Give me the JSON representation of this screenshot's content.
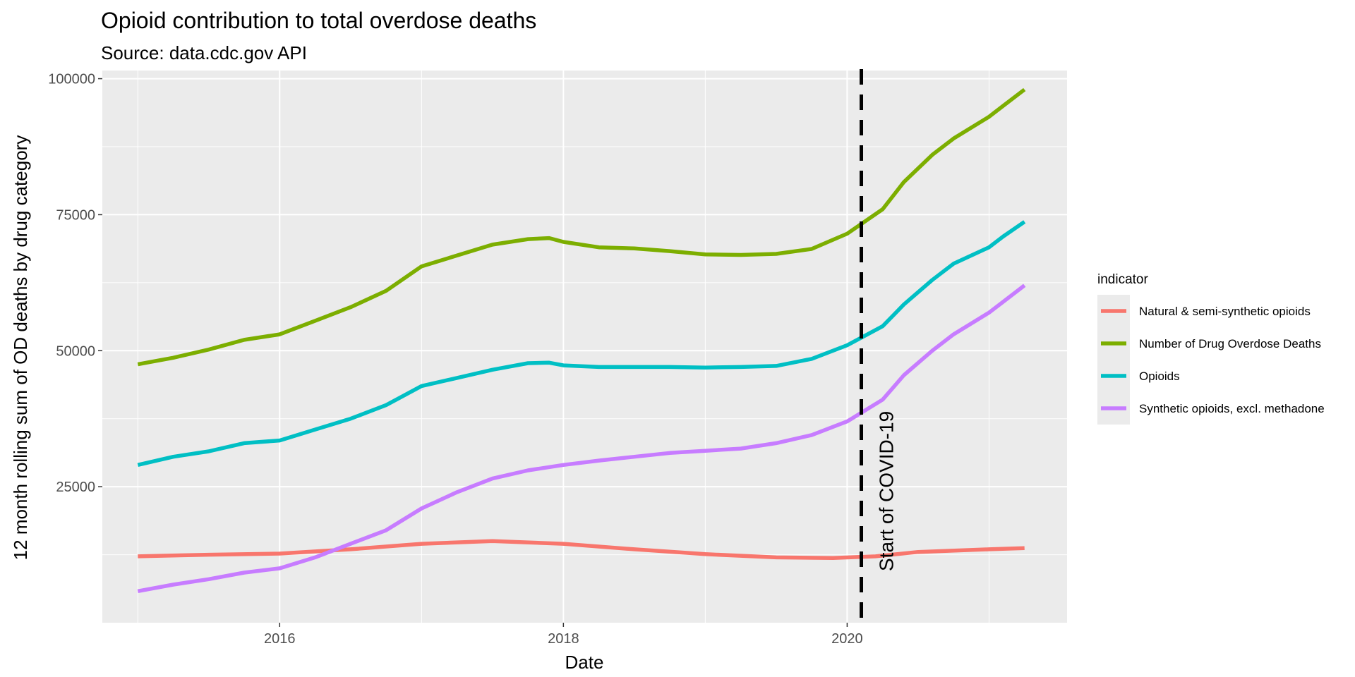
{
  "chart_data": {
    "type": "line",
    "title": "Opioid contribution to total overdose deaths",
    "subtitle": "Source: data.cdc.gov API",
    "xlabel": "Date",
    "ylabel": "12 month rolling sum of OD deaths by drug category",
    "xlim": [
      2014.75,
      2021.55
    ],
    "ylim": [
      0,
      101500
    ],
    "x_ticks": [
      2016,
      2018,
      2020
    ],
    "x_tick_labels": [
      "2016",
      "2018",
      "2020"
    ],
    "y_ticks": [
      25000,
      50000,
      75000,
      100000
    ],
    "y_tick_labels": [
      "25000",
      "50000",
      "75000",
      "100000"
    ],
    "grid": true,
    "legend": {
      "title": "indicator",
      "placement": "right"
    },
    "annotations": [
      {
        "type": "vline",
        "x": 2020.1,
        "style": "dashed",
        "color": "#000000",
        "label": "Start of COVID-19"
      }
    ],
    "series": [
      {
        "name": "Natural & semi-synthetic opioids",
        "color": "#F8766D",
        "points": [
          [
            2015.0,
            12200
          ],
          [
            2015.5,
            12500
          ],
          [
            2016.0,
            12700
          ],
          [
            2016.5,
            13500
          ],
          [
            2017.0,
            14500
          ],
          [
            2017.5,
            15000
          ],
          [
            2018.0,
            14500
          ],
          [
            2018.5,
            13500
          ],
          [
            2019.0,
            12600
          ],
          [
            2019.5,
            12000
          ],
          [
            2019.9,
            11900
          ],
          [
            2020.2,
            12200
          ],
          [
            2020.5,
            13000
          ],
          [
            2021.0,
            13500
          ],
          [
            2021.25,
            13700
          ]
        ]
      },
      {
        "name": "Number of Drug Overdose Deaths",
        "color": "#7CAE00",
        "points": [
          [
            2015.0,
            47500
          ],
          [
            2015.25,
            48700
          ],
          [
            2015.5,
            50200
          ],
          [
            2015.75,
            52000
          ],
          [
            2016.0,
            53000
          ],
          [
            2016.25,
            55500
          ],
          [
            2016.5,
            58000
          ],
          [
            2016.75,
            61000
          ],
          [
            2017.0,
            65500
          ],
          [
            2017.25,
            67500
          ],
          [
            2017.5,
            69500
          ],
          [
            2017.75,
            70500
          ],
          [
            2017.9,
            70700
          ],
          [
            2018.0,
            70000
          ],
          [
            2018.25,
            69000
          ],
          [
            2018.5,
            68800
          ],
          [
            2018.75,
            68300
          ],
          [
            2019.0,
            67700
          ],
          [
            2019.25,
            67600
          ],
          [
            2019.5,
            67800
          ],
          [
            2019.75,
            68700
          ],
          [
            2020.0,
            71500
          ],
          [
            2020.25,
            76000
          ],
          [
            2020.4,
            81000
          ],
          [
            2020.6,
            86000
          ],
          [
            2020.75,
            89000
          ],
          [
            2021.0,
            93000
          ],
          [
            2021.1,
            95000
          ],
          [
            2021.25,
            98000
          ]
        ]
      },
      {
        "name": "Opioids",
        "color": "#00BFC4",
        "points": [
          [
            2015.0,
            29000
          ],
          [
            2015.25,
            30500
          ],
          [
            2015.5,
            31500
          ],
          [
            2015.75,
            33000
          ],
          [
            2016.0,
            33500
          ],
          [
            2016.25,
            35500
          ],
          [
            2016.5,
            37500
          ],
          [
            2016.75,
            40000
          ],
          [
            2017.0,
            43500
          ],
          [
            2017.25,
            45000
          ],
          [
            2017.5,
            46500
          ],
          [
            2017.75,
            47700
          ],
          [
            2017.9,
            47800
          ],
          [
            2018.0,
            47300
          ],
          [
            2018.25,
            47000
          ],
          [
            2018.5,
            47000
          ],
          [
            2018.75,
            47000
          ],
          [
            2019.0,
            46900
          ],
          [
            2019.25,
            47000
          ],
          [
            2019.5,
            47200
          ],
          [
            2019.75,
            48500
          ],
          [
            2020.0,
            51000
          ],
          [
            2020.25,
            54500
          ],
          [
            2020.4,
            58500
          ],
          [
            2020.6,
            63000
          ],
          [
            2020.75,
            66000
          ],
          [
            2021.0,
            69000
          ],
          [
            2021.1,
            71000
          ],
          [
            2021.25,
            73700
          ]
        ]
      },
      {
        "name": "Synthetic opioids, excl. methadone",
        "color": "#C77CFF",
        "points": [
          [
            2015.0,
            5800
          ],
          [
            2015.25,
            7000
          ],
          [
            2015.5,
            8000
          ],
          [
            2015.75,
            9200
          ],
          [
            2016.0,
            10000
          ],
          [
            2016.25,
            12000
          ],
          [
            2016.5,
            14500
          ],
          [
            2016.75,
            17000
          ],
          [
            2017.0,
            21000
          ],
          [
            2017.25,
            24000
          ],
          [
            2017.5,
            26500
          ],
          [
            2017.75,
            28000
          ],
          [
            2018.0,
            29000
          ],
          [
            2018.25,
            29800
          ],
          [
            2018.5,
            30500
          ],
          [
            2018.75,
            31200
          ],
          [
            2019.0,
            31600
          ],
          [
            2019.25,
            32000
          ],
          [
            2019.5,
            33000
          ],
          [
            2019.75,
            34500
          ],
          [
            2020.0,
            37000
          ],
          [
            2020.25,
            41000
          ],
          [
            2020.4,
            45500
          ],
          [
            2020.6,
            50000
          ],
          [
            2020.75,
            53000
          ],
          [
            2021.0,
            57000
          ],
          [
            2021.1,
            59000
          ],
          [
            2021.25,
            62000
          ]
        ]
      }
    ]
  }
}
